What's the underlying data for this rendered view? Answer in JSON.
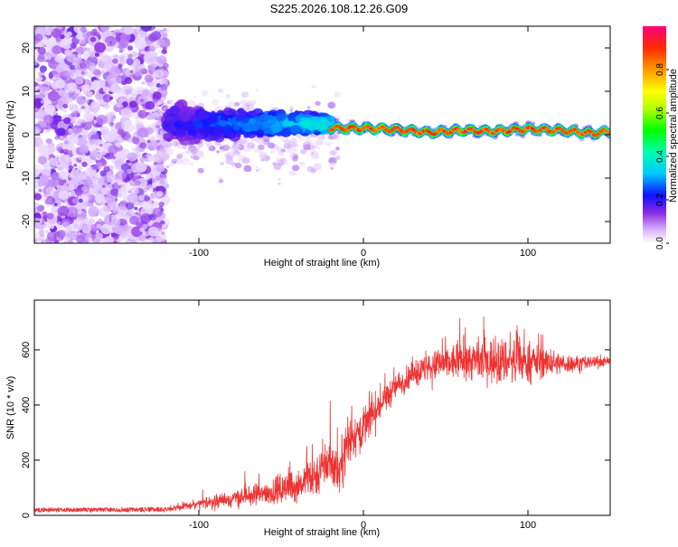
{
  "title": "S225.2026.108.12.26.G09",
  "colorbar": {
    "label": "Normalized spectral amplitude",
    "ticks": [
      0.0,
      0.2,
      0.4,
      0.6,
      0.8
    ],
    "tick_labels": [
      "0.0",
      "0.2",
      "0.4",
      "0.6",
      "0.8"
    ],
    "range": [
      0,
      1
    ]
  },
  "chart_data": [
    {
      "type": "heatmap",
      "xlabel": "Height of straight line (km)",
      "ylabel": "Frequency (Hz)",
      "xlim": [
        -200,
        150
      ],
      "ylim": [
        -25,
        25
      ],
      "xticks": [
        -100,
        0,
        100
      ],
      "xtick_labels": [
        "-100",
        "0",
        "100"
      ],
      "yticks": [
        -20,
        -10,
        0,
        10,
        20
      ],
      "ytick_labels": [
        "-20",
        "-10",
        "0",
        "10",
        "20"
      ],
      "ridge": {
        "description_points_x": [
          -20,
          0,
          20,
          40,
          60,
          80,
          100,
          120,
          140,
          150
        ],
        "frequency_hz": [
          1.5,
          1.5,
          1.2,
          0.5,
          1.0,
          0.8,
          1.3,
          1.0,
          0.3,
          0.8
        ],
        "start_x": -20
      },
      "noise_region_x": [
        -200,
        -120
      ],
      "transition_region_x": [
        -120,
        -20
      ]
    },
    {
      "type": "line",
      "xlabel": "Height of straight line (km)",
      "ylabel": "SNR (10 * v/v)",
      "xlim": [
        -200,
        150
      ],
      "ylim": [
        0,
        780
      ],
      "xticks": [
        -100,
        0,
        100
      ],
      "xtick_labels": [
        "-100",
        "0",
        "100"
      ],
      "yticks": [
        0,
        200,
        400,
        600
      ],
      "ytick_labels": [
        "0",
        "200",
        "400",
        "600"
      ],
      "color": "#ee3333",
      "envelope": {
        "x": [
          -200,
          -150,
          -120,
          -100,
          -80,
          -60,
          -40,
          -30,
          -20,
          -15,
          -10,
          0,
          10,
          20,
          30,
          40,
          50,
          60,
          70,
          80,
          90,
          100,
          110,
          120,
          130,
          140,
          150
        ],
        "mean": [
          20,
          20,
          22,
          40,
          60,
          80,
          110,
          140,
          200,
          150,
          260,
          320,
          400,
          470,
          510,
          535,
          550,
          560,
          560,
          560,
          560,
          555,
          555,
          550,
          550,
          555,
          560
        ],
        "spread": [
          8,
          8,
          10,
          25,
          40,
          60,
          80,
          100,
          120,
          110,
          120,
          100,
          80,
          60,
          60,
          70,
          80,
          90,
          100,
          110,
          110,
          90,
          70,
          50,
          40,
          30,
          20
        ]
      }
    }
  ]
}
